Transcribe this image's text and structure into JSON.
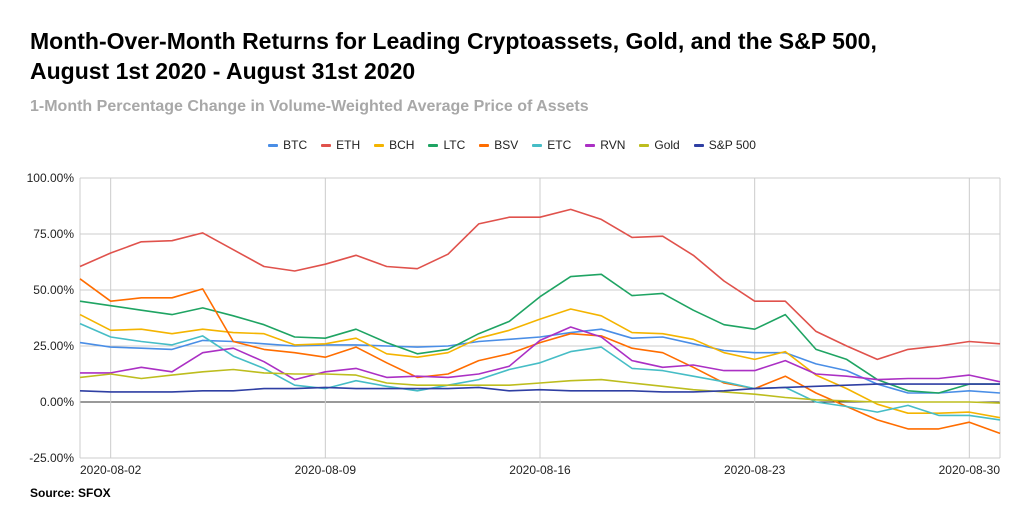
{
  "title_line1": "Month-Over-Month Returns for Leading Cryptoassets, Gold, and the S&P 500,",
  "title_line2": "August 1st 2020 - August 31st 2020",
  "subtitle": "1-Month Percentage Change in Volume-Weighted Average Price of Assets",
  "source": "Source: SFOX",
  "chart_data": {
    "type": "line",
    "title": "Month-Over-Month Returns for Leading Cryptoassets, Gold, and the S&P 500, August 1st 2020 - August 31st 2020",
    "subtitle": "1-Month Percentage Change in Volume-Weighted Average Price of Assets",
    "xlabel": "",
    "ylabel": "",
    "ylim": [
      -25,
      100
    ],
    "yticks": [
      "100.00%",
      "75.00%",
      "50.00%",
      "25.00%",
      "0.00%",
      "-25.00%"
    ],
    "ytick_values": [
      100,
      75,
      50,
      25,
      0,
      -25
    ],
    "xtick_labels": [
      "2020-08-02",
      "2020-08-09",
      "2020-08-16",
      "2020-08-23",
      "2020-08-30"
    ],
    "xtick_days": [
      2,
      9,
      16,
      23,
      30
    ],
    "x_days": [
      1,
      31
    ],
    "grid": "horizontal",
    "legend_position": "top",
    "x": [
      "2020-08-01",
      "2020-08-02",
      "2020-08-03",
      "2020-08-04",
      "2020-08-05",
      "2020-08-06",
      "2020-08-07",
      "2020-08-08",
      "2020-08-09",
      "2020-08-10",
      "2020-08-11",
      "2020-08-12",
      "2020-08-13",
      "2020-08-14",
      "2020-08-15",
      "2020-08-16",
      "2020-08-17",
      "2020-08-18",
      "2020-08-19",
      "2020-08-20",
      "2020-08-21",
      "2020-08-22",
      "2020-08-23",
      "2020-08-24",
      "2020-08-25",
      "2020-08-26",
      "2020-08-27",
      "2020-08-28",
      "2020-08-29",
      "2020-08-30",
      "2020-08-31"
    ],
    "series": [
      {
        "name": "BTC",
        "color": "#4a8ee6",
        "values": [
          26.5,
          24.5,
          24,
          23.5,
          27.5,
          27,
          26,
          25,
          25.5,
          25.5,
          25,
          24.5,
          25,
          27,
          28,
          29,
          31,
          32.5,
          28.5,
          29,
          26,
          23,
          22,
          22,
          17,
          14,
          8,
          4,
          4,
          5,
          4
        ]
      },
      {
        "name": "ETH",
        "color": "#e0524c",
        "values": [
          60.5,
          66.5,
          71.5,
          72,
          75.5,
          68,
          60.5,
          58.5,
          61.5,
          65.5,
          60.5,
          59.5,
          66,
          79.5,
          82.5,
          82.5,
          86,
          81.5,
          73.5,
          74,
          65.5,
          54,
          45,
          45,
          31.5,
          25,
          19,
          23.5,
          25,
          27,
          26
        ]
      },
      {
        "name": "BCH",
        "color": "#f4b400",
        "values": [
          39,
          32,
          32.5,
          30.5,
          32.5,
          31,
          30.5,
          25.5,
          26,
          28.5,
          21.5,
          20,
          22,
          28.5,
          32,
          37,
          41.5,
          38.5,
          31,
          30.5,
          28,
          22,
          19,
          22.5,
          12,
          6,
          -1,
          -5,
          -5,
          -4.5,
          -7
        ]
      },
      {
        "name": "LTC",
        "color": "#1fa463",
        "values": [
          45,
          43,
          41,
          39,
          42,
          38.5,
          34.5,
          29,
          28.5,
          32.5,
          26.5,
          21.5,
          23.5,
          30.5,
          36,
          47,
          56,
          57,
          47.5,
          48.5,
          41,
          34.5,
          32.5,
          39,
          23.5,
          19,
          10,
          5,
          4,
          8,
          8
        ]
      },
      {
        "name": "BSV",
        "color": "#ff6d00",
        "values": [
          55,
          45,
          46.5,
          46.5,
          50.5,
          27,
          23.5,
          22,
          20,
          24.5,
          17.5,
          11,
          12.5,
          18.5,
          21.5,
          26.5,
          30.5,
          29.5,
          24,
          22,
          15.5,
          8.5,
          6,
          11.5,
          4,
          -2,
          -8,
          -12,
          -12,
          -9,
          -14
        ]
      },
      {
        "name": "ETC",
        "color": "#46bdc6",
        "values": [
          35,
          29,
          27,
          25.5,
          29.5,
          20.5,
          15,
          7.5,
          6,
          9.5,
          7,
          5,
          7.5,
          10,
          14.5,
          17.5,
          22.5,
          24.5,
          15,
          14,
          11.5,
          9,
          6,
          6.5,
          0,
          -2,
          -4.5,
          -1.5,
          -6,
          -6,
          -8
        ]
      },
      {
        "name": "RVN",
        "color": "#ab30c4",
        "values": [
          13,
          13,
          15.5,
          13.5,
          22,
          24,
          18,
          10,
          13.5,
          15,
          11,
          11.5,
          11,
          12.5,
          16,
          27.5,
          33.5,
          29,
          18.5,
          15.5,
          16.5,
          14,
          14,
          18.5,
          12.5,
          11.5,
          10,
          10.5,
          10.5,
          12,
          9
        ]
      },
      {
        "name": "Gold",
        "color": "#bdbd1e",
        "values": [
          11,
          12.5,
          10.5,
          12,
          13.5,
          14.5,
          13,
          12.5,
          12.5,
          12,
          8.5,
          7.5,
          7.5,
          7.5,
          7.5,
          8.5,
          9.5,
          10,
          8.5,
          7,
          5.5,
          4.5,
          3.5,
          2,
          1,
          0.5,
          0,
          0,
          0,
          0,
          -0.5
        ]
      },
      {
        "name": "S&P 500",
        "color": "#2f3fa3",
        "values": [
          5,
          4.5,
          4.5,
          4.5,
          5,
          5,
          6,
          6,
          6.5,
          6,
          6,
          6,
          6,
          6.5,
          5,
          5.5,
          5,
          5,
          5,
          4.5,
          4.5,
          5,
          6,
          6.5,
          7,
          7.5,
          8,
          8,
          8,
          8,
          8
        ]
      }
    ]
  }
}
